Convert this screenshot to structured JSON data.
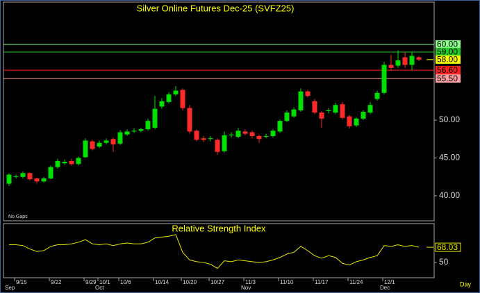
{
  "chart_data": {
    "type": "candlestick",
    "title": "Silver Online Futures Dec-25 (SVFZ25)",
    "note": "No Gaps",
    "period": "Day",
    "categories": [
      null,
      "9/15",
      null,
      null,
      null,
      null,
      "9/22",
      null,
      null,
      null,
      null,
      "9/29",
      null,
      "10/1",
      null,
      null,
      "10/6",
      null,
      null,
      null,
      null,
      "10/14",
      null,
      null,
      null,
      "10/20",
      null,
      null,
      null,
      "10/27",
      null,
      null,
      null,
      null,
      "11/3",
      null,
      null,
      null,
      null,
      "11/10",
      null,
      null,
      null,
      null,
      "11/17",
      null,
      null,
      null,
      null,
      "11/24",
      null,
      null,
      null,
      null,
      "12/1",
      null,
      null,
      null,
      null,
      null
    ],
    "months": [
      "Sep",
      null,
      null,
      null,
      null,
      null,
      null,
      null,
      null,
      null,
      null,
      null,
      null,
      "Oct",
      null,
      null,
      null,
      null,
      null,
      null,
      null,
      null,
      null,
      null,
      null,
      null,
      null,
      null,
      null,
      null,
      null,
      null,
      null,
      null,
      "Nov",
      null,
      null,
      null,
      null,
      null,
      null,
      null,
      null,
      null,
      null,
      null,
      null,
      null,
      null,
      null,
      null,
      null,
      null,
      null,
      "Dec",
      null,
      null,
      null,
      null,
      null
    ],
    "open": [
      41.6,
      42.5,
      42.5,
      43.0,
      42.3,
      41.9,
      42.3,
      43.8,
      44.3,
      44.6,
      44.2,
      45.1,
      47.2,
      46.5,
      47.0,
      47.5,
      46.9,
      48.1,
      48.5,
      48.6,
      48.8,
      49.0,
      51.8,
      52.4,
      53.4,
      54.0,
      51.6,
      48.6,
      47.6,
      47.5,
      47.4,
      45.9,
      48.0,
      47.8,
      48.5,
      48.4,
      47.9,
      47.8,
      47.9,
      48.5,
      49.9,
      50.5,
      51.3,
      53.8,
      52.5,
      51.0,
      51.2,
      51.0,
      52.1,
      50.5,
      49.3,
      50.2,
      51.0,
      52.8,
      53.6,
      57.3,
      57.2,
      58.3,
      57.3,
      58.3
    ],
    "close": [
      42.8,
      42.6,
      43.0,
      42.2,
      41.9,
      42.3,
      43.8,
      44.6,
      44.5,
      44.2,
      45.0,
      47.3,
      46.2,
      47.0,
      47.3,
      46.8,
      48.4,
      48.5,
      48.6,
      48.8,
      49.9,
      51.5,
      52.5,
      53.4,
      53.9,
      51.6,
      48.5,
      47.4,
      47.4,
      47.6,
      45.8,
      48.0,
      48.1,
      48.6,
      48.2,
      47.9,
      47.5,
      47.9,
      48.6,
      49.9,
      51.0,
      51.4,
      53.8,
      53.2,
      51.0,
      50.2,
      51.3,
      52.0,
      50.3,
      49.2,
      50.2,
      51.1,
      52.0,
      53.6,
      57.3,
      56.9,
      57.9,
      57.3,
      58.5,
      58.0
    ],
    "high": [
      43.0,
      42.8,
      43.2,
      43.1,
      42.4,
      42.5,
      44.0,
      44.9,
      44.8,
      44.9,
      45.2,
      47.6,
      47.4,
      47.3,
      47.6,
      47.7,
      48.7,
      48.8,
      48.9,
      49.0,
      50.2,
      53.2,
      52.9,
      53.7,
      54.5,
      54.2,
      52.0,
      48.8,
      47.9,
      47.9,
      47.6,
      48.5,
      48.4,
      49.0,
      48.8,
      48.6,
      48.1,
      48.2,
      48.8,
      50.1,
      51.3,
      51.7,
      54.2,
      54.0,
      52.8,
      51.2,
      51.6,
      52.3,
      52.4,
      50.7,
      50.4,
      51.3,
      52.4,
      53.9,
      57.7,
      58.6,
      59.2,
      59.0,
      59.0,
      58.5
    ],
    "low": [
      41.3,
      42.3,
      42.3,
      42.0,
      41.6,
      41.7,
      42.2,
      43.6,
      44.1,
      44.0,
      44.0,
      45.0,
      46.0,
      46.3,
      46.8,
      45.8,
      46.7,
      47.9,
      48.3,
      48.4,
      48.6,
      48.8,
      51.5,
      52.2,
      53.2,
      51.3,
      48.2,
      47.2,
      47.1,
      47.2,
      45.4,
      45.7,
      47.7,
      47.6,
      48.0,
      47.6,
      47.0,
      47.6,
      47.7,
      48.3,
      49.7,
      50.3,
      51.1,
      53.0,
      50.8,
      49.0,
      50.9,
      50.8,
      50.1,
      48.9,
      49.1,
      50.0,
      50.8,
      52.6,
      53.4,
      56.6,
      56.9,
      56.9,
      56.6,
      57.8
    ],
    "up_color": "#00e000",
    "down_color": "#ff2a2a",
    "ylim": [
      36.7,
      65.6
    ],
    "yticks": [
      {
        "value": 40,
        "label": "40.00"
      },
      {
        "value": 45,
        "label": "45.00"
      },
      {
        "value": 50,
        "label": "50.00"
      }
    ],
    "levels": [
      {
        "value": 60,
        "label": "60.00",
        "color": "#8aff8a"
      },
      {
        "value": 59,
        "label": "59.00",
        "color": "#22cc22"
      },
      {
        "value": 56.6,
        "label": "56.60",
        "color": "#ff2020"
      },
      {
        "value": 55.5,
        "label": "55.50",
        "color": "#ffa0a0"
      }
    ],
    "last_price": {
      "value": 58,
      "label": "58.00",
      "color": "#ffff00"
    },
    "rsi": {
      "title": "Relative Strength Index",
      "color": "#e8e800",
      "values": [
        71,
        71,
        70,
        66,
        63,
        64,
        69,
        71,
        71,
        72,
        74,
        77,
        72,
        71,
        72,
        70,
        72,
        73,
        72,
        72,
        74,
        79,
        80,
        81,
        83,
        62,
        53,
        51,
        50,
        48,
        43,
        52,
        51,
        53,
        52,
        51,
        50,
        51,
        53,
        56,
        60,
        62,
        69,
        64,
        58,
        55,
        58,
        56,
        49,
        47,
        51,
        53,
        56,
        58,
        70,
        69,
        71,
        69,
        70,
        68.03
      ],
      "ylim": [
        32,
        96
      ],
      "yticks": [
        50
      ]
    }
  }
}
